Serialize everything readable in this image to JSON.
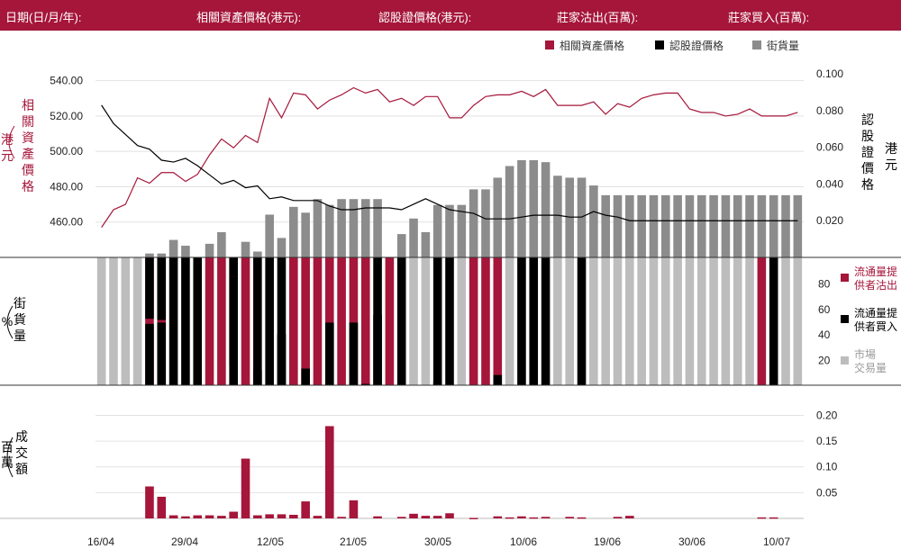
{
  "header": {
    "date_label": "日期(日/月/年):",
    "underlying_label": "相關資產價格(港元):",
    "warrant_label": "認股證價格(港元):",
    "mm_sell_label": "莊家沽出(百萬):",
    "mm_buy_label": "莊家買入(百萬):"
  },
  "colors": {
    "header_bg": "#a5163a",
    "crimson": "#a5163a",
    "black": "#000000",
    "gray": "#8c8c8c",
    "light_gray": "#bdbdbd",
    "grid": "#e2e2e2"
  },
  "chart_data": {
    "type": "combo",
    "x_tick_labels": [
      "16/04",
      "29/04",
      "12/05",
      "21/05",
      "30/05",
      "10/06",
      "19/06",
      "30/06",
      "10/07"
    ],
    "price_panel": {
      "left_axis_title": "相關資產價格(港元)",
      "right_axis_title": "認股證價格(港元)",
      "left_ticks": [
        "540.00",
        "520.00",
        "500.00",
        "480.00",
        "460.00"
      ],
      "left_tick_values": [
        540,
        520,
        500,
        480,
        460
      ],
      "left_range": [
        440,
        550
      ],
      "right_ticks": [
        "0.100",
        "0.080",
        "0.060",
        "0.040",
        "0.020"
      ],
      "right_tick_values": [
        0.1,
        0.08,
        0.06,
        0.04,
        0.02
      ],
      "right_range": [
        0,
        0.106
      ],
      "legend": [
        "相關資產價格",
        "認股證價格",
        "街貨量"
      ],
      "underlying_price": [
        457,
        467,
        470,
        485,
        482,
        488,
        488,
        483,
        487,
        498,
        507,
        502,
        509,
        505,
        530,
        519,
        533,
        532,
        524,
        529,
        532,
        536,
        533,
        535,
        528,
        530,
        526,
        531,
        531,
        519,
        519,
        526,
        531,
        532,
        532,
        534,
        531,
        535,
        526,
        526,
        526,
        528,
        521,
        527,
        525,
        530,
        532,
        533,
        533,
        524,
        522,
        522,
        520,
        521,
        524,
        520,
        520,
        520,
        522
      ],
      "warrant_price": [
        0.083,
        0.073,
        0.067,
        0.061,
        0.059,
        0.053,
        0.052,
        0.054,
        0.05,
        0.045,
        0.04,
        0.042,
        0.038,
        0.039,
        0.032,
        0.033,
        0.031,
        0.031,
        0.031,
        0.028,
        0.026,
        0.026,
        0.027,
        0.027,
        0.027,
        0.026,
        0.029,
        0.032,
        0.029,
        0.026,
        0.025,
        0.024,
        0.021,
        0.021,
        0.021,
        0.022,
        0.023,
        0.023,
        0.023,
        0.022,
        0.022,
        0.025,
        0.023,
        0.022,
        0.02,
        0.02,
        0.02,
        0.02,
        0.02,
        0.02,
        0.02,
        0.02,
        0.02,
        0.02,
        0.02,
        0.02,
        0.02,
        0.02,
        0.02
      ],
      "outstanding_pct": [
        0,
        0,
        0,
        0,
        2,
        2,
        9,
        6,
        0,
        7,
        13,
        0,
        8,
        3,
        22,
        10,
        26,
        23,
        30,
        27,
        30,
        30,
        30,
        30,
        0,
        12,
        20,
        13,
        27,
        27,
        27,
        35,
        35,
        41,
        47,
        50,
        50,
        49,
        42,
        41,
        41,
        37,
        32,
        32,
        32,
        32,
        32,
        32,
        32,
        32,
        32,
        32,
        32,
        32,
        32,
        32,
        32,
        32,
        32
      ]
    },
    "share_panel": {
      "left_axis_title": "街貨量(%)",
      "right_ticks": [
        "80",
        "60",
        "40",
        "20"
      ],
      "right_tick_values": [
        80,
        60,
        40,
        20
      ],
      "range": [
        0,
        100
      ],
      "legend": [
        "流通量提供者沽出",
        "流通量提供者買入",
        "市場交易量"
      ],
      "mm_sell_pct": [
        0,
        0,
        0,
        0,
        100,
        100,
        0,
        0,
        0,
        100,
        100,
        85,
        100,
        0,
        0,
        0,
        100,
        100,
        100,
        100,
        100,
        100,
        100,
        0,
        100,
        0,
        0,
        0,
        0,
        0,
        0,
        100,
        100,
        100,
        0,
        0,
        0,
        0,
        0,
        0,
        0,
        0,
        0,
        0,
        0,
        0,
        0,
        0,
        0,
        0,
        0,
        0,
        0,
        0,
        0,
        100,
        0,
        0,
        0
      ],
      "mm_buy_pct": [
        0,
        0,
        0,
        0,
        48,
        49,
        100,
        100,
        100,
        0,
        0,
        15,
        0,
        100,
        100,
        100,
        0,
        0,
        0,
        0,
        0,
        0,
        0,
        100,
        0,
        100,
        0,
        0,
        100,
        100,
        0,
        0,
        0,
        0,
        0,
        100,
        100,
        100,
        0,
        0,
        100,
        0,
        0,
        0,
        0,
        0,
        0,
        0,
        0,
        0,
        0,
        0,
        0,
        0,
        0,
        0,
        100,
        0,
        0
      ],
      "market_pct": [
        100,
        100,
        100,
        100,
        0,
        0,
        0,
        0,
        0,
        0,
        0,
        0,
        0,
        0,
        0,
        0,
        0,
        0,
        0,
        0,
        0,
        0,
        0,
        0,
        0,
        0,
        100,
        100,
        0,
        0,
        100,
        0,
        0,
        0,
        100,
        0,
        0,
        0,
        100,
        100,
        0,
        100,
        100,
        100,
        100,
        100,
        100,
        100,
        100,
        100,
        100,
        100,
        100,
        100,
        100,
        0,
        0,
        100,
        100
      ],
      "mm_buy_is_overlay": [
        false,
        false,
        false,
        false,
        true,
        true,
        false,
        false,
        false,
        false,
        false,
        true,
        false,
        true,
        false,
        true,
        false,
        true,
        false,
        true,
        false,
        true,
        true,
        true,
        false,
        false,
        false,
        false,
        true,
        false,
        false,
        false,
        false,
        true,
        false,
        false,
        false,
        false,
        false,
        false,
        false,
        false,
        false,
        false,
        false,
        false,
        false,
        false,
        false,
        false,
        false,
        false,
        false,
        false,
        false,
        false,
        false,
        false,
        false
      ],
      "mm_buy_overlay": [
        0,
        0,
        0,
        0,
        48,
        49,
        0,
        0,
        0,
        0,
        0,
        85,
        0,
        12,
        0,
        40,
        0,
        13,
        0,
        49,
        0,
        49,
        1,
        55,
        0,
        0,
        0,
        0,
        3,
        0,
        0,
        0,
        0,
        8,
        0,
        0,
        0,
        0,
        0,
        0,
        0,
        0,
        0,
        0,
        0,
        0,
        0,
        0,
        0,
        0,
        0,
        0,
        0,
        0,
        0,
        0,
        0,
        0,
        0
      ]
    },
    "volume_panel": {
      "left_axis_title": "成交額(百萬)",
      "right_ticks": [
        "0.20",
        "0.15",
        "0.10",
        "0.05"
      ],
      "right_tick_values": [
        0.2,
        0.15,
        0.1,
        0.05
      ],
      "range": [
        0,
        0.22
      ],
      "values": [
        0,
        0,
        0,
        0,
        0.062,
        0.042,
        0.006,
        0.004,
        0.006,
        0.006,
        0.005,
        0.013,
        0.116,
        0.006,
        0.008,
        0.008,
        0.007,
        0.033,
        0.005,
        0.179,
        0.003,
        0.035,
        0,
        0.004,
        0,
        0.003,
        0.009,
        0.005,
        0.005,
        0.01,
        0,
        0.001,
        0,
        0.004,
        0.002,
        0.004,
        0.002,
        0.003,
        0,
        0.003,
        0.002,
        0,
        0,
        0.003,
        0.005,
        0,
        0,
        0,
        0,
        0,
        0,
        0,
        0,
        0,
        0,
        0.002,
        0.002,
        0,
        0
      ]
    }
  }
}
